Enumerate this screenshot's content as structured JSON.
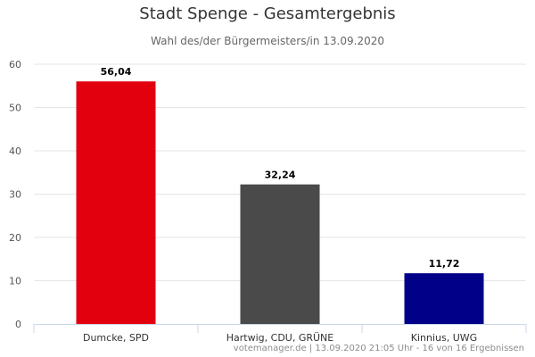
{
  "chart_data": {
    "type": "bar",
    "title": "Stadt Spenge - Gesamtergebnis",
    "subtitle": "Wahl des/der Bürgermeisters/in 13.09.2020",
    "categories": [
      "Dumcke, SPD",
      "Hartwig, CDU, GRÜNE",
      "Kinnius, UWG"
    ],
    "values": [
      56.04,
      32.24,
      11.72
    ],
    "data_labels": [
      "56,04",
      "32,24",
      "11,72"
    ],
    "colors": [
      "#e2000f",
      "#4a4a4a",
      "#000088"
    ],
    "ylim": [
      0,
      60
    ],
    "yticks": [
      0,
      10,
      20,
      30,
      40,
      50,
      60
    ],
    "grid": true,
    "legend": "none"
  },
  "footer": "votemanager.de | 13.09.2020 21:05 Uhr - 16 von 16 Ergebnissen"
}
